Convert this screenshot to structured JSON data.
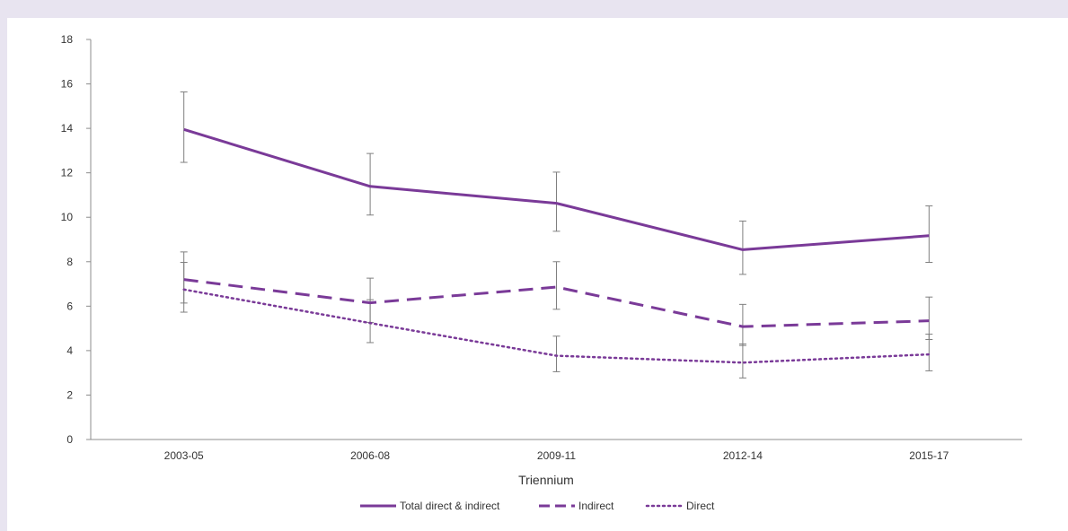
{
  "chart_data": {
    "type": "line",
    "title": "",
    "xlabel": "Triennium",
    "ylabel": "",
    "ylim": [
      0,
      18
    ],
    "yticks": [
      "0",
      "2",
      "4",
      "6",
      "8",
      "10",
      "12",
      "14",
      "16",
      "18"
    ],
    "categories": [
      "2003-05",
      "2006-08",
      "2009-11",
      "2012-14",
      "2015-17"
    ],
    "grid": false,
    "legend_position": "bottom",
    "color": "#7a3a98",
    "series": [
      {
        "name": "Total direct & indirect",
        "style": "solid",
        "values": [
          13.95,
          11.39,
          10.63,
          8.54,
          9.17
        ],
        "err_low": [
          12.47,
          10.1,
          9.37,
          7.43,
          7.97
        ],
        "err_high": [
          15.64,
          12.87,
          12.03,
          9.83,
          10.51
        ]
      },
      {
        "name": "Indirect",
        "style": "dashed",
        "values": [
          7.2,
          6.15,
          6.86,
          5.08,
          5.34
        ],
        "err_low": [
          6.14,
          5.27,
          5.86,
          4.23,
          4.5
        ],
        "err_high": [
          8.44,
          7.26,
          8.0,
          6.08,
          6.41
        ]
      },
      {
        "name": "Direct",
        "style": "dotted",
        "values": [
          6.75,
          5.24,
          3.77,
          3.46,
          3.83
        ],
        "err_low": [
          5.73,
          4.36,
          3.05,
          2.77,
          3.09
        ],
        "err_high": [
          7.97,
          6.29,
          4.65,
          4.3,
          4.74
        ]
      }
    ]
  }
}
